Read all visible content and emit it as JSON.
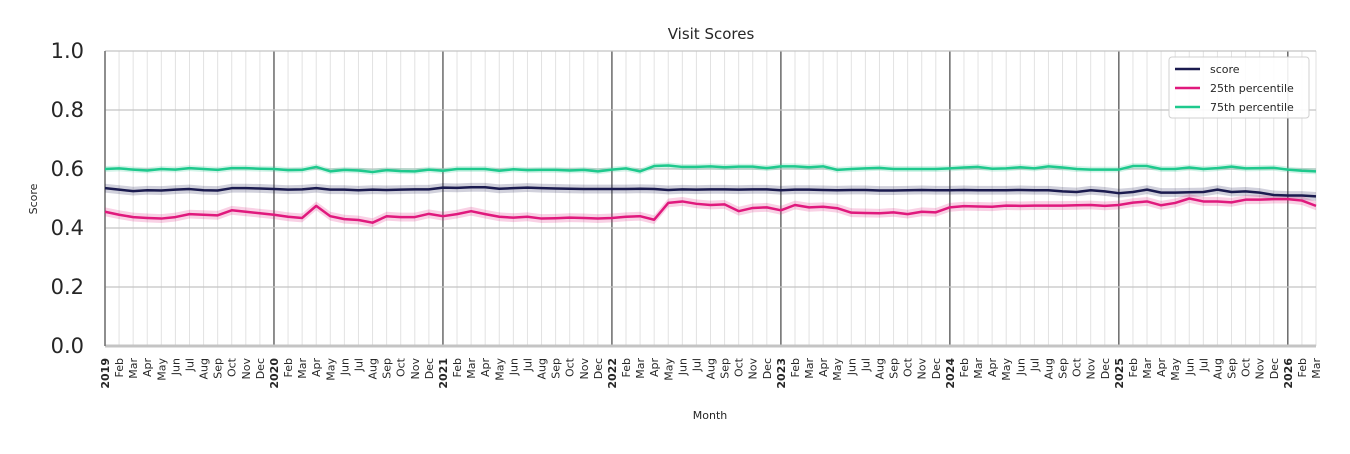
{
  "chart_data": {
    "type": "line",
    "title": "Visit Scores",
    "xlabel": "Month",
    "ylabel": "Score",
    "ylim": [
      0,
      1
    ],
    "yticks": [
      "0.0",
      "0.2",
      "0.4",
      "0.6",
      "0.8",
      "1.0"
    ],
    "x_start": "2019-01",
    "x_end": "2026-03",
    "month_labels": [
      "Jan",
      "Feb",
      "Mar",
      "Apr",
      "May",
      "Jun",
      "Jul",
      "Aug",
      "Sep",
      "Oct",
      "Nov",
      "Dec"
    ],
    "grid": true,
    "legend_placement": "top-right",
    "series": [
      {
        "name": "score",
        "color": "#1b1b4f",
        "band": 0.015,
        "values": [
          0.535,
          0.53,
          0.525,
          0.528,
          0.527,
          0.53,
          0.532,
          0.528,
          0.527,
          0.535,
          0.535,
          0.534,
          0.532,
          0.53,
          0.531,
          0.535,
          0.53,
          0.53,
          0.528,
          0.53,
          0.529,
          0.53,
          0.531,
          0.531,
          0.537,
          0.536,
          0.538,
          0.538,
          0.533,
          0.535,
          0.537,
          0.535,
          0.534,
          0.533,
          0.532,
          0.532,
          0.532,
          0.532,
          0.533,
          0.532,
          0.529,
          0.531,
          0.53,
          0.531,
          0.531,
          0.53,
          0.531,
          0.531,
          0.528,
          0.53,
          0.53,
          0.529,
          0.528,
          0.529,
          0.529,
          0.527,
          0.527,
          0.528,
          0.529,
          0.528,
          0.528,
          0.529,
          0.528,
          0.528,
          0.528,
          0.529,
          0.528,
          0.528,
          0.524,
          0.522,
          0.528,
          0.524,
          0.518,
          0.522,
          0.53,
          0.52,
          0.52,
          0.521,
          0.522,
          0.53,
          0.522,
          0.524,
          0.52,
          0.512,
          0.51,
          0.51,
          0.507
        ]
      },
      {
        "name": "25th percentile",
        "color": "#e0197d",
        "band": 0.015,
        "values": [
          0.455,
          0.445,
          0.437,
          0.434,
          0.432,
          0.437,
          0.447,
          0.445,
          0.443,
          0.46,
          0.455,
          0.45,
          0.445,
          0.438,
          0.434,
          0.475,
          0.44,
          0.43,
          0.427,
          0.418,
          0.44,
          0.437,
          0.437,
          0.448,
          0.44,
          0.447,
          0.457,
          0.447,
          0.438,
          0.435,
          0.438,
          0.432,
          0.433,
          0.435,
          0.434,
          0.432,
          0.434,
          0.438,
          0.44,
          0.428,
          0.485,
          0.49,
          0.482,
          0.478,
          0.48,
          0.457,
          0.468,
          0.47,
          0.46,
          0.478,
          0.47,
          0.472,
          0.467,
          0.452,
          0.451,
          0.45,
          0.453,
          0.447,
          0.455,
          0.453,
          0.47,
          0.474,
          0.473,
          0.472,
          0.476,
          0.475,
          0.476,
          0.476,
          0.476,
          0.477,
          0.478,
          0.475,
          0.478,
          0.486,
          0.49,
          0.477,
          0.485,
          0.5,
          0.49,
          0.49,
          0.487,
          0.496,
          0.496,
          0.498,
          0.498,
          0.493,
          0.475
        ]
      },
      {
        "name": "75th percentile",
        "color": "#1ec98d",
        "band": 0.01,
        "values": [
          0.6,
          0.602,
          0.598,
          0.595,
          0.6,
          0.598,
          0.603,
          0.6,
          0.597,
          0.603,
          0.603,
          0.601,
          0.6,
          0.596,
          0.597,
          0.607,
          0.592,
          0.597,
          0.595,
          0.59,
          0.596,
          0.593,
          0.592,
          0.598,
          0.594,
          0.6,
          0.6,
          0.6,
          0.594,
          0.599,
          0.596,
          0.597,
          0.597,
          0.595,
          0.597,
          0.592,
          0.598,
          0.602,
          0.592,
          0.61,
          0.612,
          0.607,
          0.607,
          0.609,
          0.606,
          0.608,
          0.608,
          0.603,
          0.609,
          0.609,
          0.606,
          0.609,
          0.597,
          0.6,
          0.602,
          0.604,
          0.6,
          0.6,
          0.6,
          0.6,
          0.602,
          0.605,
          0.607,
          0.601,
          0.602,
          0.606,
          0.602,
          0.609,
          0.605,
          0.6,
          0.598,
          0.598,
          0.598,
          0.61,
          0.61,
          0.6,
          0.6,
          0.605,
          0.6,
          0.603,
          0.608,
          0.602,
          0.603,
          0.604,
          0.598,
          0.594,
          0.592
        ]
      }
    ]
  }
}
